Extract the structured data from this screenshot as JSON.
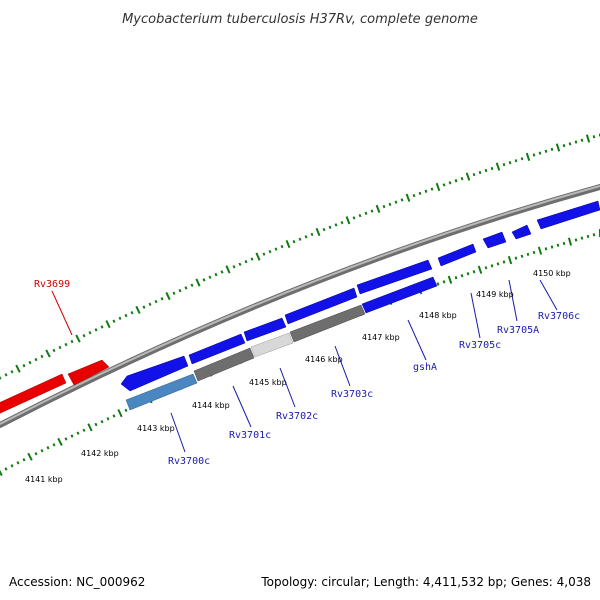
{
  "title": "Mycobacterium tuberculosis H37Rv, complete genome",
  "footer": {
    "accession": "Accession: NC_000962",
    "info": "Topology: circular; Length: 4,411,532 bp; Genes: 4,038"
  },
  "colors": {
    "backbone": "#8c8c8c",
    "forward_gene": "#ee0000",
    "reverse_gene": "#1a1aee",
    "ticks": "#137a13",
    "forward_label": "#cc0000",
    "reverse_label": "#1a1aaa"
  },
  "tick_labels": [
    "4141 kbp",
    "4142 kbp",
    "4143 kbp",
    "4144 kbp",
    "4145 kbp",
    "4146 kbp",
    "4147 kbp",
    "4148 kbp",
    "4149 kbp",
    "4150 kbp"
  ],
  "gene_labels": {
    "rv3699": "Rv3699",
    "rv3700c": "Rv3700c",
    "rv3701c": "Rv3701c",
    "rv3702c": "Rv3702c",
    "rv3703c": "Rv3703c",
    "gsha": "gshA",
    "rv3705c": "Rv3705c",
    "rv3705a": "Rv3705A",
    "rv3706c": "Rv3706c"
  }
}
